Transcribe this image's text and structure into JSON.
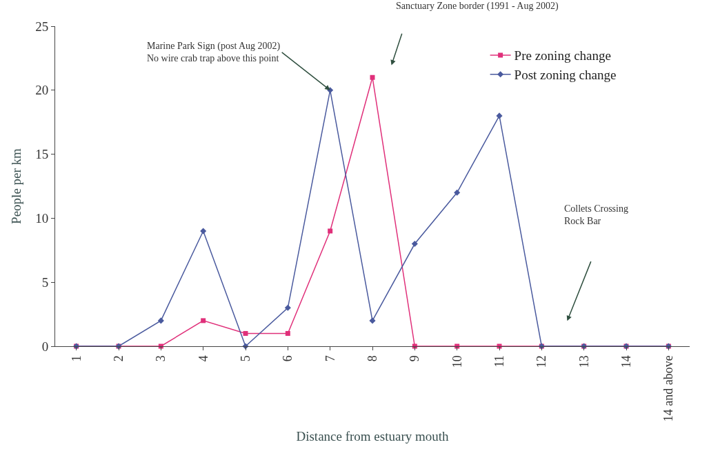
{
  "chart_data": {
    "type": "line",
    "xlabel": "Distance from estuary mouth",
    "ylabel": "People per km",
    "categories": [
      "1",
      "2",
      "3",
      "4",
      "5",
      "6",
      "7",
      "8",
      "9",
      "10",
      "11",
      "12",
      "13",
      "14",
      "14 and above"
    ],
    "series": [
      {
        "name": "Pre zoning change",
        "color": "#e0307a",
        "marker": "square",
        "values": [
          0,
          0,
          0,
          2,
          1,
          1,
          9,
          21,
          0,
          0,
          0,
          0,
          0,
          0,
          0
        ]
      },
      {
        "name": "Post zoning change",
        "color": "#4a5a9e",
        "marker": "diamond",
        "values": [
          0,
          0,
          2,
          9,
          0,
          3,
          20,
          2,
          8,
          12,
          18,
          0,
          0,
          0,
          0
        ]
      }
    ],
    "ylim": [
      0,
      25
    ],
    "yticks": [
      0,
      5,
      10,
      15,
      20,
      25
    ],
    "legend": "top right",
    "line_style": "solid",
    "annotations": [
      {
        "text": "Marine Park Sign (post Aug 2002)\nNo wire crab trap above this point",
        "x": "7",
        "y": 20
      },
      "Sanctuary Zone border (1991 - Aug 2002)",
      "Collets Crossing\nRock Bar"
    ]
  }
}
